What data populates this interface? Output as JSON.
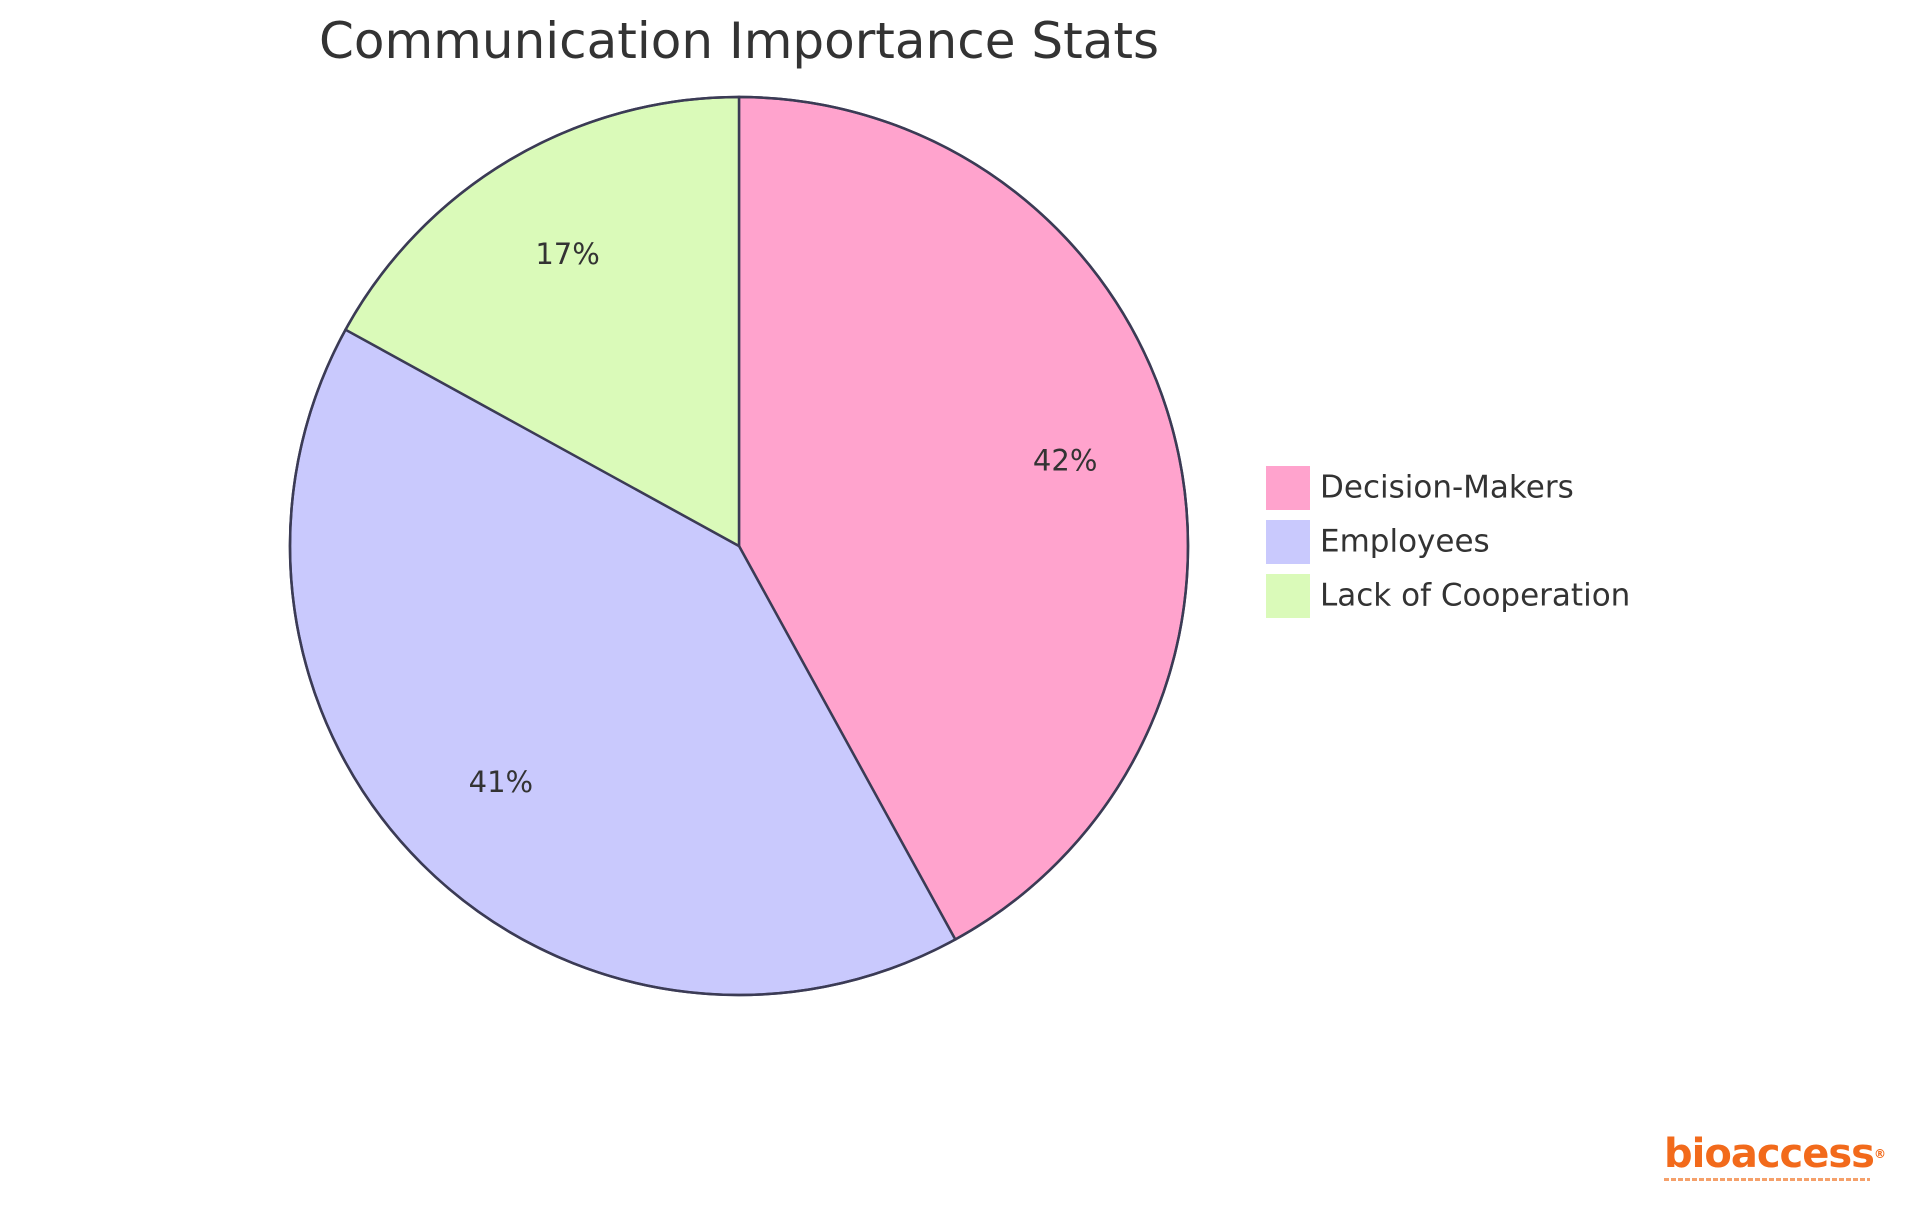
{
  "chart_data": {
    "type": "pie",
    "title": "Communication Importance Stats",
    "slices": [
      {
        "label": "Decision-Makers",
        "value": 42,
        "display": "42%",
        "color": "#ffa3cd"
      },
      {
        "label": "Employees",
        "value": 41,
        "display": "41%",
        "color": "#c9c9fd"
      },
      {
        "label": "Lack of Cooperation",
        "value": 17,
        "display": "17%",
        "color": "#dafab9"
      }
    ],
    "start_angle": "12 o'clock",
    "direction": "clockwise",
    "slice_border_color": "#3b3b55",
    "legend_placement": "right"
  },
  "logo": {
    "text": "bioaccess",
    "color": "#f26a1b"
  }
}
